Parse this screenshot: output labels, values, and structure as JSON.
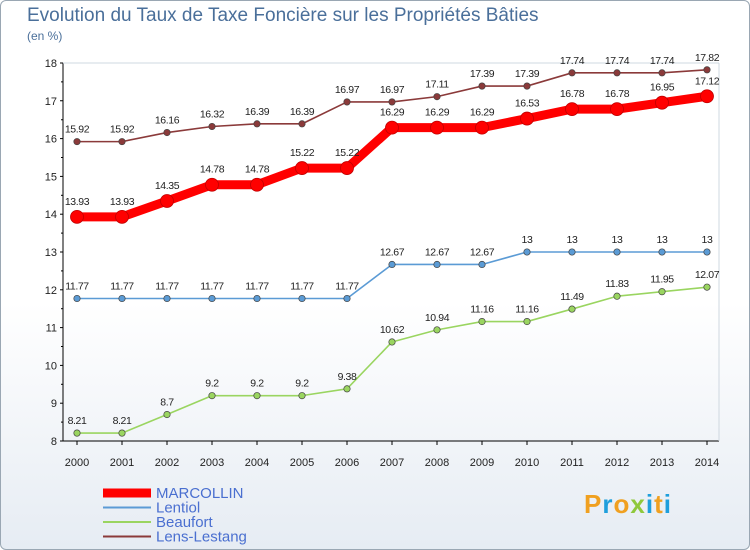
{
  "title": "Evolution du Taux de Taxe Foncière sur les Propriétés Bâties",
  "unit_label": "(en %)",
  "logo": {
    "letters": [
      "P",
      "r",
      "o",
      "x",
      "i",
      "t",
      "i"
    ],
    "colors": [
      "#f0a020",
      "#1f9fdc",
      "#f0a020",
      "#8fc83c",
      "#1f9fdc",
      "#f0a020",
      "#1f9fdc"
    ]
  },
  "chart_data": {
    "type": "line",
    "title": "Evolution du Taux de Taxe Foncière sur les Propriétés Bâties",
    "ylabel": "(en %)",
    "x": [
      "2000",
      "2001",
      "2002",
      "2003",
      "2004",
      "2005",
      "2006",
      "2007",
      "2008",
      "2009",
      "2010",
      "2011",
      "2012",
      "2013",
      "2014"
    ],
    "ylim": [
      8,
      18
    ],
    "yticks": [
      "8",
      "9",
      "10",
      "11",
      "12",
      "13",
      "14",
      "15",
      "16",
      "17",
      "18"
    ],
    "grid": false,
    "legend_position": "bottom-left",
    "series": [
      {
        "name": "MARCOLLIN",
        "color": "#ff0000",
        "values": [
          13.93,
          13.93,
          14.35,
          14.78,
          14.78,
          15.22,
          15.22,
          16.29,
          16.29,
          16.29,
          16.53,
          16.78,
          16.78,
          16.95,
          17.12
        ],
        "labels": [
          "13.93",
          "13.93",
          "14.35",
          "14.78",
          "14.78",
          "15.22",
          "15.22",
          "16.29",
          "16.29",
          "16.29",
          "16.53",
          "16.78",
          "16.78",
          "16.95",
          "17.12"
        ]
      },
      {
        "name": "Lentiol",
        "color": "#5b9bd5",
        "values": [
          11.77,
          11.77,
          11.77,
          11.77,
          11.77,
          11.77,
          11.77,
          12.67,
          12.67,
          12.67,
          13,
          13,
          13,
          13,
          13
        ],
        "labels": [
          "11.77",
          "11.77",
          "11.77",
          "11.77",
          "11.77",
          "11.77",
          "11.77",
          "12.67",
          "12.67",
          "12.67",
          "13",
          "13",
          "13",
          "13",
          "13"
        ]
      },
      {
        "name": "Beaufort",
        "color": "#9ad560",
        "values": [
          8.21,
          8.21,
          8.7,
          9.2,
          9.2,
          9.2,
          9.38,
          10.62,
          10.94,
          11.16,
          11.16,
          11.49,
          11.83,
          11.95,
          12.07
        ],
        "labels": [
          "8.21",
          "8.21",
          "8.7",
          "9.2",
          "9.2",
          "9.2",
          "9.38",
          "10.62",
          "10.94",
          "11.16",
          "11.16",
          "11.49",
          "11.83",
          "11.95",
          "12.07"
        ]
      },
      {
        "name": "Lens-Lestang",
        "color": "#8b3a3a",
        "values": [
          15.92,
          15.92,
          16.16,
          16.32,
          16.39,
          16.39,
          16.97,
          16.97,
          17.11,
          17.39,
          17.39,
          17.74,
          17.74,
          17.74,
          17.82
        ],
        "labels": [
          "15.92",
          "15.92",
          "16.16",
          "16.32",
          "16.39",
          "16.39",
          "16.97",
          "16.97",
          "17.11",
          "17.39",
          "17.39",
          "17.74",
          "17.74",
          "17.74",
          "17.82"
        ]
      }
    ]
  }
}
